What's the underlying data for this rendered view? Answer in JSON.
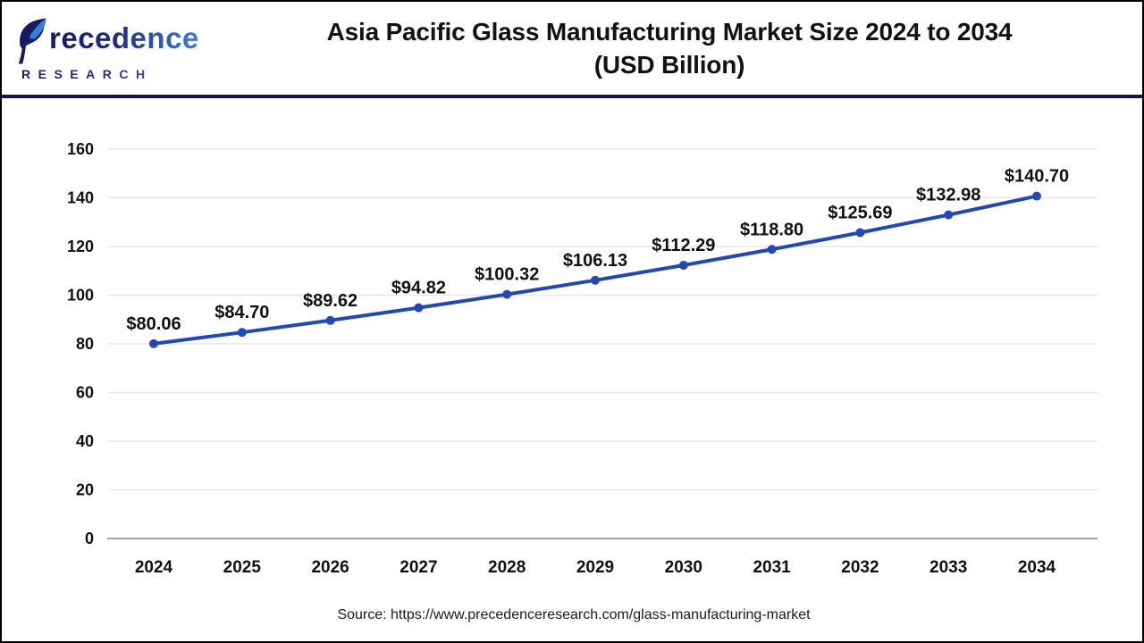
{
  "header": {
    "logo": {
      "brand_word": "Precedence",
      "brand_word_rest": "recedence",
      "brand_sub": "RESEARCH"
    },
    "title_line1": "Asia Pacific Glass Manufacturing Market Size 2024 to 2034",
    "title_line2": "(USD Billion)"
  },
  "footer": {
    "source_text": "Source: https://www.precedenceresearch.com/glass-manufacturing-market"
  },
  "colors": {
    "line": "#2149b5",
    "marker": "#2149b5",
    "gridline": "#e8e8e8",
    "axis_line": "#a3a3a3",
    "label_text": "#111111",
    "header_rule": "#141549",
    "logo_navy": "#151c5e",
    "logo_blue": "#3b7be0"
  },
  "chart_data": {
    "type": "line",
    "title": "Asia Pacific Glass Manufacturing Market Size 2024 to 2034 (USD Billion)",
    "x": [
      2024,
      2025,
      2026,
      2027,
      2028,
      2029,
      2030,
      2031,
      2032,
      2033,
      2034
    ],
    "series": [
      {
        "name": "Asia Pacific Glass Manufacturing Market Size (USD Billion)",
        "values": [
          80.06,
          84.7,
          89.62,
          94.82,
          100.32,
          106.13,
          112.29,
          118.8,
          125.69,
          132.98,
          140.7
        ]
      }
    ],
    "data_labels": [
      "$80.06",
      "$84.70",
      "$89.62",
      "$94.82",
      "$100.32",
      "$106.13",
      "$112.29",
      "$118.80",
      "$125.69",
      "$132.98",
      "$140.70"
    ],
    "xlabel": "",
    "ylabel": "",
    "ylim": [
      0,
      160
    ],
    "ytick_step": 20,
    "grid": true,
    "legend": "none"
  }
}
